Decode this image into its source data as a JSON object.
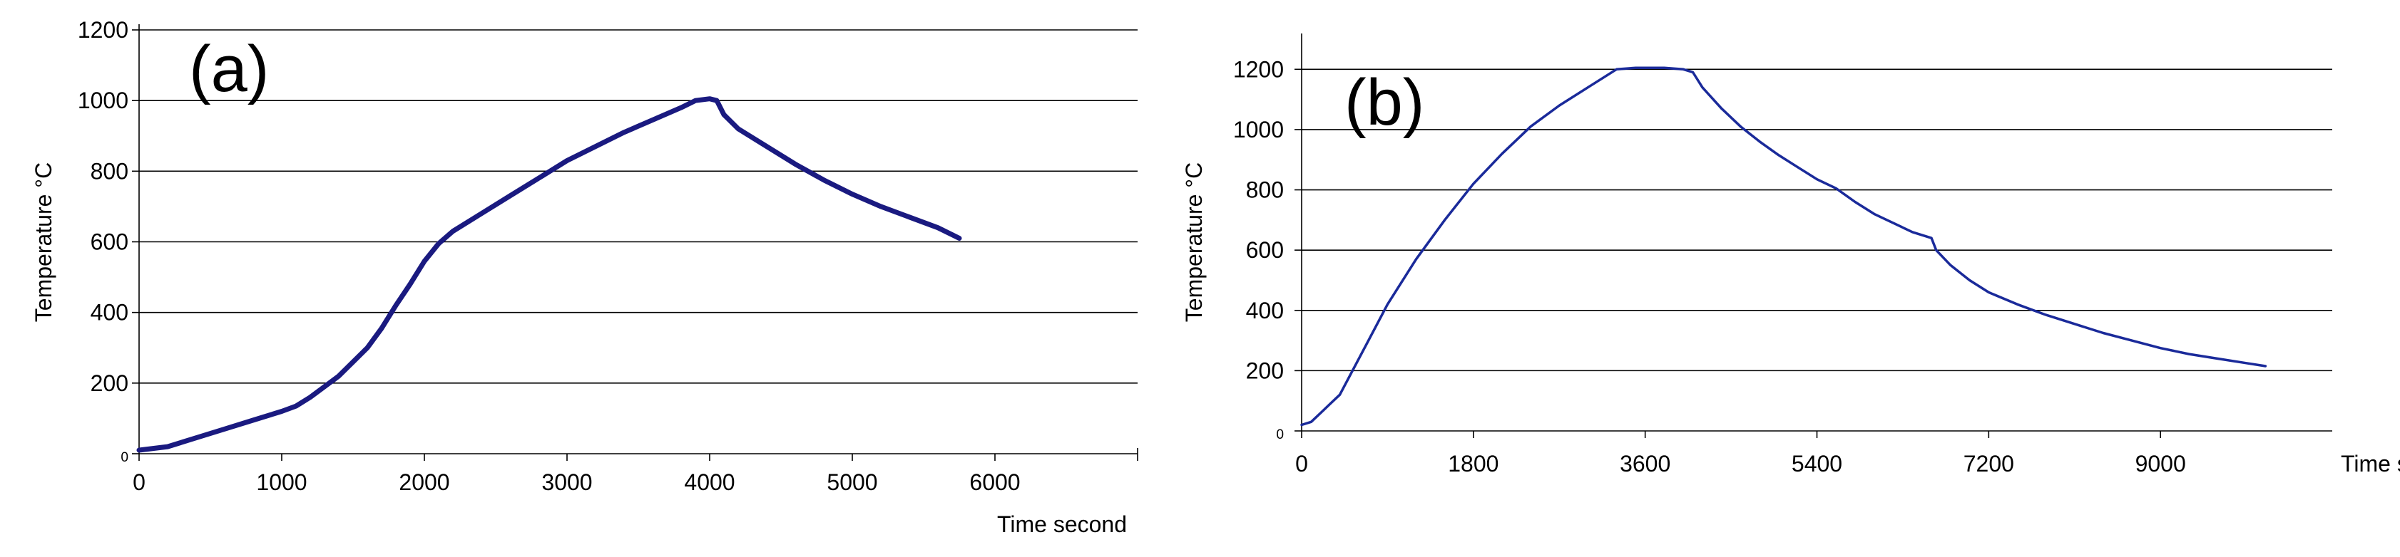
{
  "chart_data": [
    {
      "type": "line",
      "panel_label": "(a)",
      "title": "",
      "xlabel": "Time second",
      "ylabel": "Temperature °C",
      "xlim": [
        0,
        7000
      ],
      "ylim": [
        0,
        1200
      ],
      "x_ticks": [
        "0",
        "1000",
        "2000",
        "3000",
        "4000",
        "5000",
        "6000"
      ],
      "y_ticks": [
        "0",
        "200",
        "400",
        "600",
        "800",
        "1000",
        "1200"
      ],
      "grid": "horizontal",
      "line_color": "#1a1a80",
      "series": [
        {
          "x": [
            0,
            200,
            400,
            600,
            800,
            1000,
            1100,
            1200,
            1400,
            1600,
            1700,
            1800,
            1900,
            2000,
            2100,
            2200,
            2400,
            2600,
            2800,
            3000,
            3200,
            3400,
            3600,
            3800,
            3900,
            4000,
            4050,
            4100,
            4200,
            4400,
            4600,
            4800,
            5000,
            5200,
            5400,
            5600,
            5750
          ],
          "y": [
            10,
            20,
            45,
            70,
            95,
            120,
            135,
            160,
            220,
            300,
            355,
            420,
            480,
            545,
            595,
            630,
            680,
            730,
            780,
            830,
            870,
            910,
            945,
            980,
            1000,
            1005,
            1000,
            960,
            920,
            870,
            820,
            775,
            735,
            700,
            670,
            640,
            610
          ]
        }
      ]
    },
    {
      "type": "line",
      "panel_label": "(b)",
      "title": "",
      "xlabel": "Time second",
      "ylabel": "Temperature °C",
      "xlim": [
        0,
        10800
      ],
      "ylim": [
        0,
        1300
      ],
      "x_ticks": [
        "0",
        "1800",
        "3600",
        "5400",
        "7200",
        "9000"
      ],
      "y_ticks": [
        "0",
        "200",
        "400",
        "600",
        "800",
        "1000",
        "1200"
      ],
      "grid": "horizontal",
      "line_color": "#1a2a9a",
      "series": [
        {
          "x": [
            0,
            100,
            200,
            300,
            400,
            500,
            700,
            900,
            1200,
            1500,
            1800,
            2100,
            2400,
            2700,
            3000,
            3200,
            3300,
            3500,
            3600,
            3800,
            4000,
            4100,
            4200,
            4400,
            4600,
            4800,
            5000,
            5200,
            5400,
            5600,
            5800,
            6000,
            6200,
            6400,
            6600,
            6650,
            6800,
            7000,
            7200,
            7500,
            7800,
            8100,
            8400,
            8700,
            9000,
            9300,
            9600,
            9900,
            10100
          ],
          "y": [
            20,
            30,
            60,
            90,
            120,
            180,
            300,
            420,
            570,
            700,
            820,
            920,
            1010,
            1080,
            1140,
            1180,
            1200,
            1205,
            1205,
            1205,
            1200,
            1190,
            1140,
            1070,
            1010,
            960,
            915,
            875,
            835,
            805,
            760,
            720,
            690,
            660,
            640,
            600,
            550,
            500,
            460,
            420,
            385,
            355,
            325,
            300,
            275,
            255,
            240,
            225,
            215
          ]
        }
      ]
    }
  ]
}
